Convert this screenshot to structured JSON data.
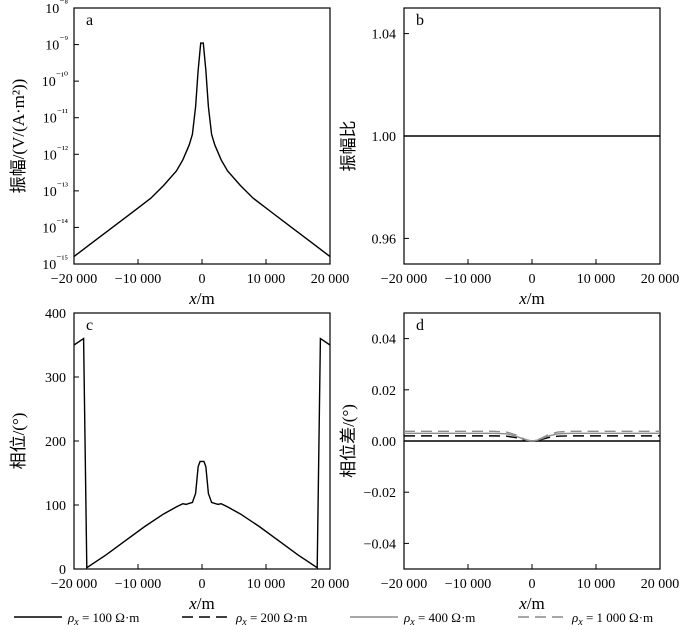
{
  "chart_data": [
    {
      "id": "a",
      "panel_label": "a",
      "type": "line",
      "title": "",
      "xlabel": "x/m",
      "ylabel": "振幅/(V/(A·m²))",
      "yscale": "log",
      "xlim": [
        -20000,
        20000
      ],
      "ylim": [
        1e-15,
        1e-08
      ],
      "x_ticks": [
        "−20 000",
        "−10 000",
        "0",
        "10 000",
        "20 000"
      ],
      "y_ticks": [
        "10⁻¹⁵",
        "10⁻¹⁴",
        "10⁻¹³",
        "10⁻¹²",
        "10⁻¹¹",
        "10⁻¹⁰",
        "10⁻⁹",
        "10⁻⁸"
      ],
      "series": [
        {
          "x": [
            -20000,
            -17000,
            -14000,
            -11000,
            -8000,
            -6000,
            -4000,
            -3000,
            -2000,
            -1500,
            -1000,
            -600,
            -200,
            0,
            200,
            600,
            1000,
            1500,
            2000,
            3000,
            4000,
            6000,
            8000,
            11000,
            14000,
            17000,
            20000
          ],
          "y": [
            1.6e-15,
            4e-15,
            1e-14,
            2.5e-14,
            6.3e-14,
            1.4e-13,
            3.5e-13,
            7e-13,
            1.8e-12,
            3.5e-12,
            2e-11,
            2e-10,
            1.1e-09,
            1.1e-09,
            1.1e-09,
            2e-10,
            2e-11,
            3.5e-12,
            1.8e-12,
            7e-13,
            3.5e-13,
            1.4e-13,
            6.3e-14,
            2.5e-14,
            1e-14,
            4e-15,
            1.6e-15
          ]
        }
      ]
    },
    {
      "id": "b",
      "panel_label": "b",
      "type": "line",
      "title": "",
      "xlabel": "x/m",
      "ylabel": "振幅比",
      "xlim": [
        -20000,
        20000
      ],
      "ylim": [
        0.95,
        1.05
      ],
      "x_ticks": [
        "−20 000",
        "−10 000",
        "0",
        "10 000",
        "20 000"
      ],
      "y_ticks": [
        "0.96",
        "1.00",
        "1.04"
      ],
      "series": [
        {
          "x": [
            -20000,
            20000
          ],
          "y": [
            1.0,
            1.0
          ]
        }
      ]
    },
    {
      "id": "c",
      "panel_label": "c",
      "type": "line",
      "title": "",
      "xlabel": "x/m",
      "ylabel": "相位/(°)",
      "xlim": [
        -20000,
        20000
      ],
      "ylim": [
        0,
        400
      ],
      "x_ticks": [
        "−20 000",
        "−10 000",
        "0",
        "10 000",
        "20 000"
      ],
      "y_ticks": [
        "0",
        "100",
        "200",
        "300",
        "400"
      ],
      "series": [
        {
          "x": [
            -20000,
            -18500,
            -18000,
            -15000,
            -12000,
            -9000,
            -6000,
            -4000,
            -3000,
            -2500,
            -1500,
            -1000,
            -600,
            -300,
            300,
            600,
            1000,
            1500,
            2500,
            3000,
            4000,
            6000,
            9000,
            12000,
            15000,
            18000,
            18500,
            20000
          ],
          "y": [
            350,
            360,
            2,
            22,
            44,
            66,
            86,
            97,
            102,
            101,
            104,
            118,
            160,
            168,
            168,
            160,
            118,
            104,
            101,
            102,
            97,
            86,
            66,
            44,
            22,
            2,
            360,
            350
          ]
        }
      ]
    },
    {
      "id": "d",
      "panel_label": "d",
      "type": "line",
      "title": "",
      "xlabel": "x/m",
      "ylabel": "相位差/(°)",
      "xlim": [
        -20000,
        20000
      ],
      "ylim": [
        -0.05,
        0.05
      ],
      "x_ticks": [
        "−20 000",
        "−10 000",
        "0",
        "10 000",
        "20 000"
      ],
      "y_ticks": [
        "−0.04",
        "−0.02",
        "0.00",
        "0.02",
        "0.04"
      ],
      "series": [
        {
          "name": "ρx = 100 Ω·m",
          "color": "#000000",
          "dash": "solid",
          "x": [
            -20000,
            20000
          ],
          "y": [
            0.0,
            0.0
          ]
        },
        {
          "name": "ρx = 200 Ω·m",
          "color": "#000000",
          "dash": "dashed",
          "x": [
            -20000,
            -6000,
            -4000,
            -2500,
            -1500,
            -800,
            0,
            800,
            1500,
            2500,
            4000,
            6000,
            20000
          ],
          "y": [
            0.002,
            0.002,
            0.0019,
            0.0013,
            0.0006,
            0.0002,
            0.0,
            0.0002,
            0.0006,
            0.0013,
            0.0019,
            0.002,
            0.002
          ]
        },
        {
          "name": "ρx = 400 Ω·m",
          "color": "#8c8c8c",
          "dash": "solid",
          "x": [
            -20000,
            -6000,
            -4000,
            -2500,
            -1500,
            -800,
            0,
            800,
            1500,
            2500,
            4000,
            6000,
            20000
          ],
          "y": [
            0.003,
            0.003,
            0.0028,
            0.0019,
            0.0009,
            0.0003,
            0.0,
            0.0003,
            0.0009,
            0.0019,
            0.0028,
            0.003,
            0.003
          ]
        },
        {
          "name": "ρx = 1 000 Ω·m",
          "color": "#8c8c8c",
          "dash": "dashed",
          "x": [
            -20000,
            -6000,
            -4000,
            -2500,
            -1500,
            -800,
            0,
            800,
            1500,
            2500,
            4000,
            6000,
            20000
          ],
          "y": [
            0.0038,
            0.0038,
            0.0035,
            0.0024,
            0.0011,
            0.0004,
            0.0,
            0.0004,
            0.0011,
            0.0024,
            0.0035,
            0.0038,
            0.0038
          ]
        }
      ]
    }
  ],
  "legend": [
    {
      "prefix": "ρ",
      "sub": "x",
      "suffix": " = 100 Ω·m",
      "color": "#000000",
      "dash": "solid"
    },
    {
      "prefix": "ρ",
      "sub": "x",
      "suffix": " = 200 Ω·m",
      "color": "#000000",
      "dash": "dashed"
    },
    {
      "prefix": "ρ",
      "sub": "x",
      "suffix": " = 400 Ω·m",
      "color": "#8c8c8c",
      "dash": "solid"
    },
    {
      "prefix": "ρ",
      "sub": "x",
      "suffix": " = 1 000 Ω·m",
      "color": "#8c8c8c",
      "dash": "dashed"
    }
  ],
  "legend_position": "bottom"
}
